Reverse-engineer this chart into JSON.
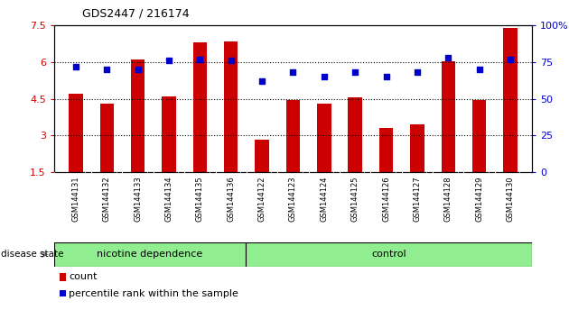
{
  "title": "GDS2447 / 216174",
  "samples": [
    "GSM144131",
    "GSM144132",
    "GSM144133",
    "GSM144134",
    "GSM144135",
    "GSM144136",
    "GSM144122",
    "GSM144123",
    "GSM144124",
    "GSM144125",
    "GSM144126",
    "GSM144127",
    "GSM144128",
    "GSM144129",
    "GSM144130"
  ],
  "bar_values": [
    4.7,
    4.3,
    6.1,
    4.6,
    6.8,
    6.85,
    2.85,
    4.45,
    4.3,
    4.55,
    3.3,
    3.45,
    6.05,
    4.45,
    7.4
  ],
  "percentile_values": [
    72,
    70,
    70,
    76,
    77,
    76,
    62,
    68,
    65,
    68,
    65,
    68,
    78,
    70,
    77
  ],
  "bar_color": "#cc0000",
  "percentile_color": "#0000cc",
  "ylim_left": [
    1.5,
    7.5
  ],
  "ylim_right": [
    0,
    100
  ],
  "yticks_left": [
    1.5,
    3.0,
    4.5,
    6.0,
    7.5
  ],
  "ytick_labels_left": [
    "1.5",
    "3",
    "4.5",
    "6",
    "7.5"
  ],
  "yticks_right": [
    0,
    25,
    50,
    75,
    100
  ],
  "ytick_labels_right": [
    "0",
    "25",
    "50",
    "75",
    "100%"
  ],
  "hlines": [
    3.0,
    4.5,
    6.0
  ],
  "group1_label": "nicotine dependence",
  "group2_label": "control",
  "group1_count": 6,
  "group2_count": 9,
  "disease_state_label": "disease state",
  "legend_count_label": "count",
  "legend_percentile_label": "percentile rank within the sample",
  "bg_color": "#ffffff",
  "tick_label_color_left": "#cc0000",
  "tick_label_color_right": "#0000cc",
  "bar_width": 0.45,
  "group1_bg": "#90ee90",
  "group2_bg": "#90ee90",
  "sample_bg": "#d0d0d0"
}
